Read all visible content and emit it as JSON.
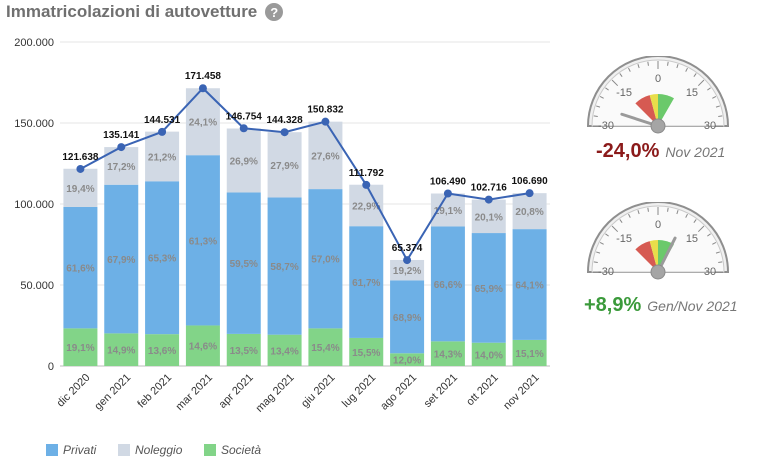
{
  "header": {
    "title": "Immatricolazioni di autovetture",
    "help_icon": "?"
  },
  "colors": {
    "privati": "#6db0e6",
    "noleggio": "#d1d9e4",
    "societa": "#82d488",
    "line": "#3a64b4",
    "neg": "#8b1a1a",
    "pos": "#3b9a3b"
  },
  "chart_data": {
    "type": "bar",
    "stacked": true,
    "categories": [
      "dic 2020",
      "gen 2021",
      "feb 2021",
      "mar 2021",
      "apr 2021",
      "mag 2021",
      "giu 2021",
      "lug 2021",
      "ago 2021",
      "set 2021",
      "ott 2021",
      "nov 2021"
    ],
    "y_ticks": [
      "0",
      "50.000",
      "100.000",
      "150.000",
      "200.000"
    ],
    "ylim": [
      0,
      200000
    ],
    "grid": true,
    "legend_position": "bottom-left",
    "series": [
      {
        "name": "Società",
        "color_key": "societa",
        "pct_labels": [
          "19,1%",
          "14,9%",
          "13,6%",
          "14,6%",
          "13,5%",
          "13,4%",
          "15,4%",
          "15,5%",
          "12,0%",
          "14,3%",
          "14,0%",
          "15,1%"
        ],
        "pct": [
          19.1,
          14.9,
          13.6,
          14.6,
          13.5,
          13.4,
          15.4,
          15.5,
          12.0,
          14.3,
          14.0,
          15.1
        ]
      },
      {
        "name": "Privati",
        "color_key": "privati",
        "pct_labels": [
          "61,6%",
          "67,9%",
          "65,3%",
          "61,3%",
          "59,5%",
          "58,7%",
          "57,0%",
          "61,7%",
          "68,9%",
          "66,6%",
          "65,9%",
          "64,1%"
        ],
        "pct": [
          61.6,
          67.9,
          65.3,
          61.3,
          59.5,
          58.7,
          57.0,
          61.7,
          68.9,
          66.6,
          65.9,
          64.1
        ]
      },
      {
        "name": "Noleggio",
        "color_key": "noleggio",
        "pct_labels": [
          "19,4%",
          "17,2%",
          "21,2%",
          "24,1%",
          "26,9%",
          "27,9%",
          "27,6%",
          "22,9%",
          "19,2%",
          "19,1%",
          "20,1%",
          "20,8%"
        ],
        "pct": [
          19.4,
          17.2,
          21.2,
          24.1,
          26.9,
          27.9,
          27.6,
          22.9,
          19.2,
          19.1,
          20.1,
          20.8
        ]
      }
    ],
    "totals": [
      121638,
      135141,
      144531,
      171458,
      146754,
      144328,
      150832,
      111792,
      65374,
      106490,
      102716,
      106690
    ],
    "total_labels": [
      "121.638",
      "135.141",
      "144.531",
      "171.458",
      "146.754",
      "144.328",
      "150.832",
      "111.792",
      "65.374",
      "106.490",
      "102.716",
      "106.690"
    ]
  },
  "legend": [
    {
      "label": "Privati",
      "color_key": "privati"
    },
    {
      "label": "Noleggio",
      "color_key": "noleggio"
    },
    {
      "label": "Società",
      "color_key": "societa"
    }
  ],
  "gauges": [
    {
      "value": -24.0,
      "value_label": "-24,0%",
      "period": "Nov 2021",
      "sign": "neg",
      "ticks": [
        "-30",
        "-15",
        "0",
        "15",
        "30"
      ],
      "range": [
        -30,
        30
      ]
    },
    {
      "value": 8.9,
      "value_label": "+8,9%",
      "period": "Gen/Nov 2021",
      "sign": "pos",
      "ticks": [
        "-30",
        "-15",
        "0",
        "15",
        "30"
      ],
      "range": [
        -30,
        30
      ]
    }
  ]
}
